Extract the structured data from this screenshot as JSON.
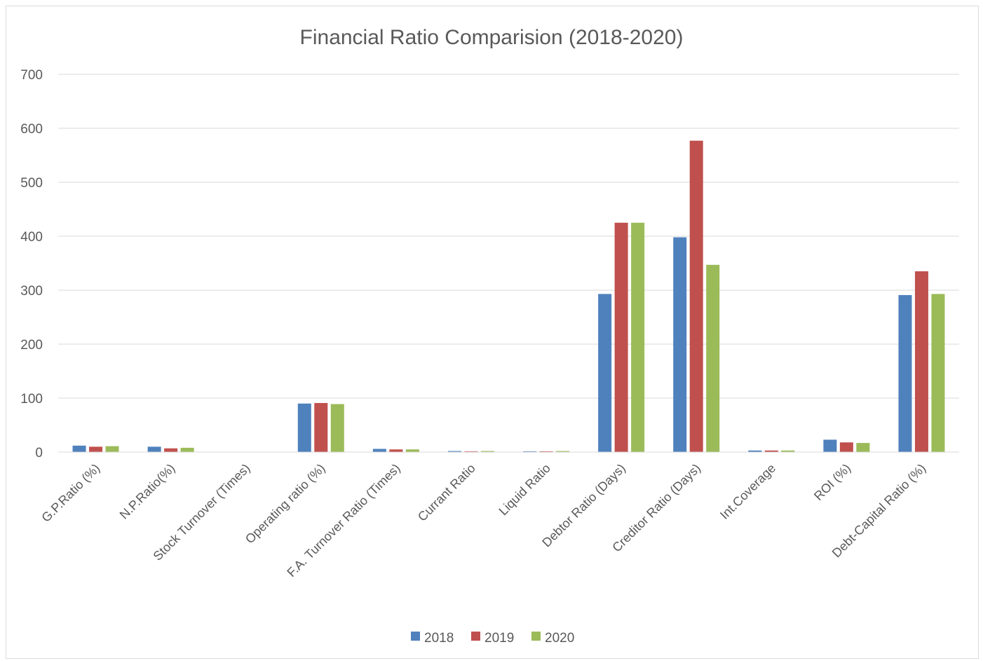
{
  "chart_data": {
    "type": "bar",
    "title": "Financial Ratio Comparision (2018-2020)",
    "categories": [
      "G.P.Ratio (%)",
      "N.P.Ratio(%)",
      "Stock Turnover (Times)",
      "Operating ratio (%)",
      "F.A. Turnover Ratio (Times)",
      "Currant Ratio",
      "Liquid Ratio",
      "Debtor Ratio (Days)",
      "Creditor Ratio (Days)",
      "Int.Coverage",
      "ROI (%)",
      "Debt-Capital Ratio (%)"
    ],
    "series": [
      {
        "name": "2018",
        "color": "#4f81bd",
        "values": [
          12,
          10,
          0.5,
          90,
          6,
          2,
          1.5,
          293,
          398,
          3,
          23,
          291
        ]
      },
      {
        "name": "2019",
        "color": "#c0504d",
        "values": [
          10,
          7,
          0.5,
          91,
          5,
          1.5,
          1.5,
          425,
          577,
          3,
          18,
          335
        ]
      },
      {
        "name": "2020",
        "color": "#9bbb59",
        "values": [
          11,
          8,
          0.5,
          89,
          5,
          2,
          2,
          425,
          347,
          3,
          17,
          293
        ]
      }
    ],
    "ylim": [
      0,
      700
    ],
    "yticks": [
      0,
      100,
      200,
      300,
      400,
      500,
      600,
      700
    ],
    "grid": true,
    "legend_position": "bottom"
  }
}
